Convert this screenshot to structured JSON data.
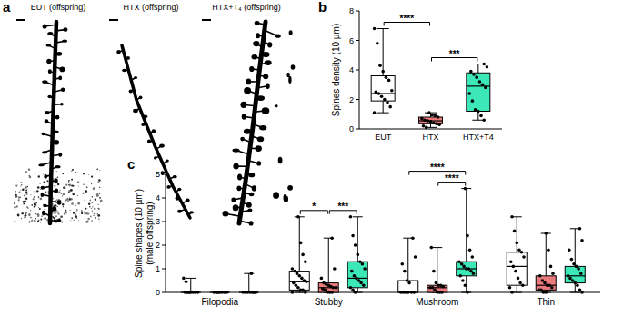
{
  "panel_labels": [
    "a",
    "b",
    "c"
  ],
  "images": {
    "labels": [
      "EUT (offspring)",
      "HTX (offspring)",
      "HTX+T₄ (offspring)"
    ]
  },
  "chart_data": [
    {
      "type": "box",
      "ylabel": "Spines density (10 µm)",
      "categories": [
        "EUT",
        "HTX",
        "HTX+T4"
      ],
      "colors": [
        "#ffffff",
        "#ea7a7c",
        "#3ce8b8"
      ],
      "ylim": [
        0,
        8
      ],
      "yticks": [
        0,
        2,
        4,
        6,
        8
      ],
      "boxes": [
        {
          "min": 1.1,
          "q1": 1.9,
          "median": 2.4,
          "q3": 3.6,
          "max": 6.8,
          "points": [
            6.8,
            5.8,
            4.3,
            3.9,
            3.5,
            3.3,
            2.6,
            2.5,
            2.4,
            2.2,
            2.0,
            1.8,
            1.5,
            1.1
          ]
        },
        {
          "min": 0.1,
          "q1": 0.35,
          "median": 0.55,
          "q3": 0.8,
          "max": 1.1,
          "points": [
            1.1,
            0.95,
            0.9,
            0.8,
            0.7,
            0.6,
            0.55,
            0.5,
            0.4,
            0.35,
            0.3,
            0.2,
            0.1
          ]
        },
        {
          "min": 0.6,
          "q1": 1.2,
          "median": 2.9,
          "q3": 3.8,
          "max": 4.4,
          "points": [
            4.4,
            4.2,
            3.9,
            3.7,
            3.5,
            3.2,
            3.0,
            2.8,
            2.4,
            1.9,
            1.3,
            1.2,
            0.9,
            0.6
          ]
        }
      ],
      "annotations": [
        {
          "text": "****",
          "from": "EUT",
          "to": "HTX"
        },
        {
          "text": "***",
          "from": "HTX",
          "to": "HTX+T4"
        }
      ]
    },
    {
      "type": "box",
      "ylabel": [
        "Spine shapes (10 µm)",
        "(male offspring)"
      ],
      "categories": [
        "Filopodia",
        "Stubby",
        "Mushroom",
        "Thin"
      ],
      "ylim": [
        0,
        5
      ],
      "yticks": [
        0,
        1,
        2,
        3,
        4,
        5
      ],
      "series": [
        {
          "color": "#ffffff",
          "boxes": [
            {
              "min": 0,
              "q1": 0,
              "median": 0,
              "q3": 0,
              "max": 0.6,
              "points": [
                0.6,
                0.45,
                0,
                0,
                0,
                0,
                0,
                0,
                0,
                0
              ]
            },
            {
              "min": 0,
              "q1": 0.1,
              "median": 0.45,
              "q3": 0.9,
              "max": 3.2,
              "points": [
                3.2,
                2.1,
                1.6,
                1.3,
                1.0,
                0.9,
                0.8,
                0.7,
                0.6,
                0.5,
                0.45,
                0.4,
                0.3,
                0.2,
                0.1,
                0.1,
                0,
                0
              ]
            },
            {
              "min": 0,
              "q1": 0,
              "median": 0,
              "q3": 0.5,
              "max": 2.3,
              "points": [
                2.3,
                1.5,
                1.2,
                0.9,
                0.5,
                0.4,
                0,
                0,
                0,
                0,
                0,
                0
              ]
            },
            {
              "min": 0,
              "q1": 0.3,
              "median": 1.1,
              "q3": 1.7,
              "max": 3.2,
              "points": [
                3.2,
                2.6,
                2.1,
                1.8,
                1.7,
                1.5,
                1.3,
                1.1,
                0.9,
                0.6,
                0.4,
                0.3,
                0.2,
                0
              ]
            }
          ]
        },
        {
          "color": "#ea7a7c",
          "boxes": [
            {
              "min": 0,
              "q1": 0,
              "median": 0,
              "q3": 0,
              "max": 0,
              "points": [
                0,
                0,
                0,
                0,
                0,
                0,
                0,
                0
              ]
            },
            {
              "min": 0,
              "q1": 0,
              "median": 0.2,
              "q3": 0.4,
              "max": 2.3,
              "points": [
                2.3,
                1.0,
                0.6,
                0.4,
                0.35,
                0.3,
                0.25,
                0.2,
                0.2,
                0.15,
                0.1,
                0,
                0,
                0
              ]
            },
            {
              "min": 0,
              "q1": 0,
              "median": 0.2,
              "q3": 0.3,
              "max": 1.9,
              "points": [
                1.9,
                0.9,
                0.4,
                0.3,
                0.3,
                0.25,
                0.2,
                0.2,
                0.1,
                0,
                0,
                0
              ]
            },
            {
              "min": 0,
              "q1": 0.1,
              "median": 0.3,
              "q3": 0.7,
              "max": 2.5,
              "points": [
                2.5,
                1.8,
                1.1,
                0.8,
                0.7,
                0.5,
                0.4,
                0.3,
                0.3,
                0.2,
                0.1,
                0.1,
                0,
                0
              ]
            }
          ]
        },
        {
          "color": "#3ce8b8",
          "boxes": [
            {
              "min": 0,
              "q1": 0,
              "median": 0,
              "q3": 0,
              "max": 0.8,
              "points": [
                0.8,
                0,
                0,
                0,
                0,
                0,
                0,
                0,
                0
              ]
            },
            {
              "min": 0,
              "q1": 0.2,
              "median": 0.6,
              "q3": 1.3,
              "max": 3.2,
              "points": [
                3.2,
                2.4,
                2.0,
                1.6,
                1.3,
                1.2,
                1.0,
                0.9,
                0.7,
                0.6,
                0.5,
                0.4,
                0.3,
                0.2,
                0.1,
                0
              ]
            },
            {
              "min": 0,
              "q1": 0.7,
              "median": 1.0,
              "q3": 1.3,
              "max": 4.4,
              "points": [
                4.4,
                2.4,
                1.8,
                1.5,
                1.3,
                1.2,
                1.1,
                1.0,
                1.0,
                0.9,
                0.8,
                0.7,
                0.5,
                0.3,
                0
              ]
            },
            {
              "min": 0,
              "q1": 0.4,
              "median": 0.7,
              "q3": 1.1,
              "max": 2.7,
              "points": [
                2.7,
                2.2,
                1.8,
                1.4,
                1.2,
                1.1,
                1.0,
                0.8,
                0.7,
                0.6,
                0.5,
                0.4,
                0.3,
                0.1,
                0
              ]
            }
          ]
        }
      ],
      "annotations": [
        {
          "text": "*",
          "category": "Stubby",
          "from": 0,
          "to": 1
        },
        {
          "text": "***",
          "category": "Stubby",
          "from": 1,
          "to": 2
        },
        {
          "text": "****",
          "category": "Mushroom",
          "from": 1,
          "to": 2
        },
        {
          "text": "****",
          "category": "Mushroom",
          "from": 0,
          "to": 2
        }
      ]
    }
  ]
}
